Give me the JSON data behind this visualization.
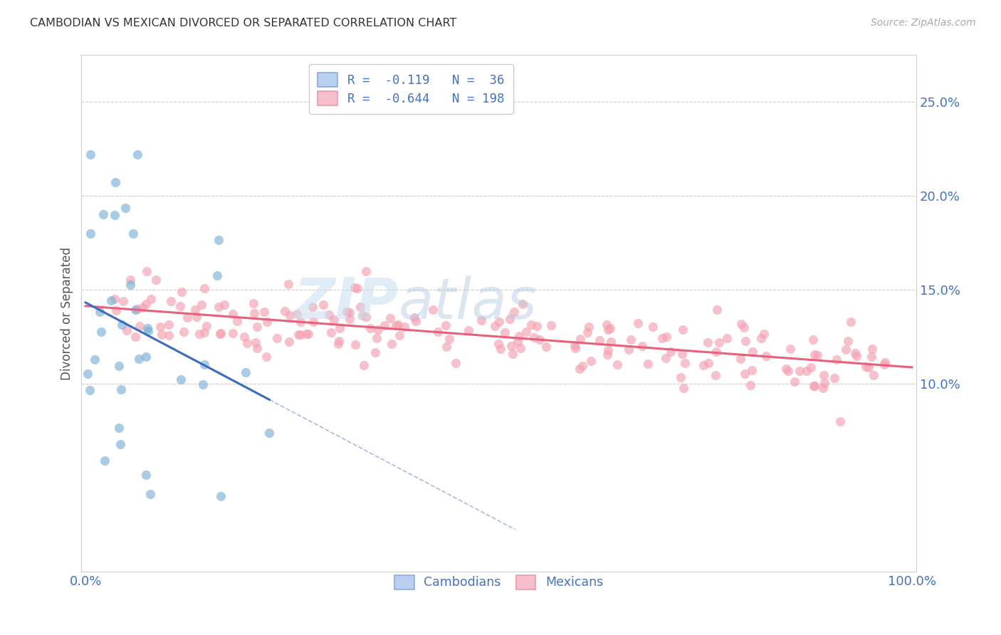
{
  "title": "CAMBODIAN VS MEXICAN DIVORCED OR SEPARATED CORRELATION CHART",
  "source": "Source: ZipAtlas.com",
  "ylabel": "Divorced or Separated",
  "color_cambodian": "#7bafd4",
  "color_mexican": "#f4a0b0",
  "color_trend_cambodian": "#3a6bbf",
  "color_trend_mexican": "#e8607a",
  "color_axis_labels": "#4472c4",
  "background_color": "#ffffff",
  "grid_color": "#c8c8c8",
  "watermark_color": "#c8dff0",
  "ytick_vals": [
    0.1,
    0.15,
    0.2,
    0.25
  ],
  "ytick_labels": [
    "10.0%",
    "15.0%",
    "20.0%",
    "25.0%"
  ],
  "ylim": [
    0.0,
    0.275
  ],
  "xlim": [
    0.0,
    1.0
  ]
}
